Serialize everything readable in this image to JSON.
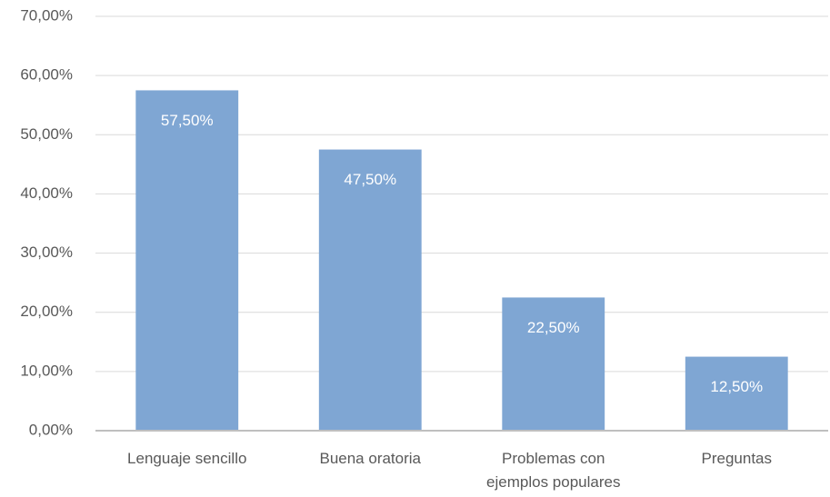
{
  "chart_data": {
    "type": "bar",
    "categories": [
      "Lenguaje sencillo",
      "Buena oratoria",
      "Problemas con ejemplos populares",
      "Preguntas"
    ],
    "values": [
      57.5,
      47.5,
      22.5,
      12.5
    ],
    "value_labels": [
      "57,50%",
      "47,50%",
      "22,50%",
      "12,50%"
    ],
    "color": "#7fa6d3",
    "ylim": [
      0,
      70
    ],
    "yticks": [
      {
        "value": 0,
        "label": "0,00%"
      },
      {
        "value": 10,
        "label": "10,00%"
      },
      {
        "value": 20,
        "label": "20,00%"
      },
      {
        "value": 30,
        "label": "30,00%"
      },
      {
        "value": 40,
        "label": "40,00%"
      },
      {
        "value": 50,
        "label": "50,00%"
      },
      {
        "value": 60,
        "label": "60,00%"
      },
      {
        "value": 70,
        "label": "70,00%"
      }
    ],
    "grid": true
  }
}
